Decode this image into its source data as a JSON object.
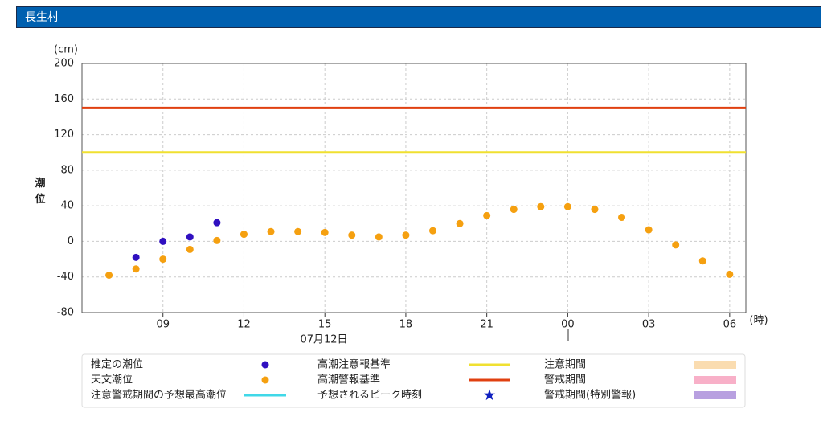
{
  "header": {
    "title": "長生村"
  },
  "chart_data": {
    "type": "scatter",
    "y_label": "潮位",
    "y_unit": "(cm)",
    "x_unit": "(時)",
    "date_label": "07月12日",
    "xlim": [
      6,
      30.6
    ],
    "xticks": [
      {
        "value": 9,
        "label": "09"
      },
      12,
      15,
      18,
      21,
      {
        "value": 24,
        "label": "00"
      },
      {
        "value": 27,
        "label": "03"
      },
      {
        "value": 30,
        "label": "06"
      }
    ],
    "ylim": [
      -80,
      200
    ],
    "yticks": [
      -80,
      -40,
      0,
      40,
      80,
      120,
      160,
      200
    ],
    "grid": true,
    "series": [
      {
        "name": "推定の潮位",
        "color": "#3010c0",
        "x": [
          8,
          9,
          10,
          11
        ],
        "values": [
          -18,
          0,
          5,
          21
        ]
      },
      {
        "name": "天文潮位",
        "color": "#f5a010",
        "x": [
          7,
          8,
          9,
          10,
          11,
          12,
          13,
          14,
          15,
          16,
          17,
          18,
          19,
          20,
          21,
          22,
          23,
          24,
          25,
          26,
          27,
          28,
          29,
          30
        ],
        "values": [
          -38,
          -31,
          -20,
          -9,
          1,
          8,
          11,
          11,
          10,
          7,
          5,
          7,
          12,
          20,
          29,
          36,
          39,
          39,
          36,
          27,
          13,
          -4,
          -22,
          -37
        ]
      }
    ],
    "reference_lines": [
      {
        "name": "高潮注意報基準",
        "color": "#f0e030",
        "value": 100
      },
      {
        "name": "高潮警報基準",
        "color": "#e04010",
        "value": 150
      }
    ],
    "legend_extra": [
      {
        "name": "注意警戒期間の予想最高潮位",
        "color": "#40d8e8",
        "kind": "line"
      },
      {
        "name": "予想されるピーク時刻",
        "color": "#1020c0",
        "kind": "star"
      },
      {
        "name": "注意期間",
        "color": "#fadcb0",
        "kind": "rect"
      },
      {
        "name": "警戒期間",
        "color": "#f8b0c8",
        "kind": "rect"
      },
      {
        "name": "警戒期間(特別警報)",
        "color": "#b8a0e0",
        "kind": "rect"
      }
    ]
  }
}
